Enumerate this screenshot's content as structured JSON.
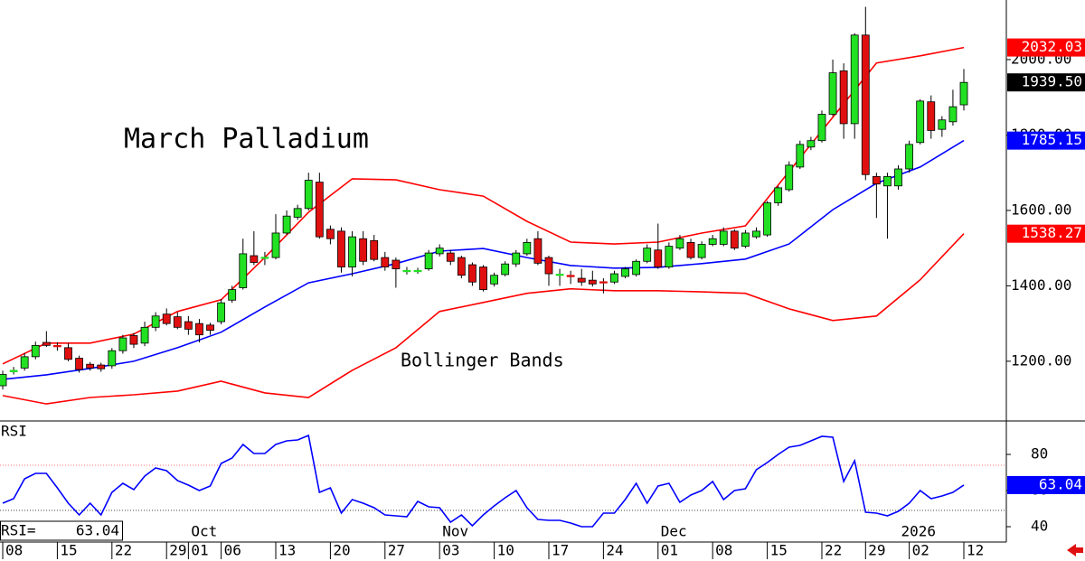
{
  "chart_data": [
    {
      "type": "candlestick",
      "title": "March Palladium",
      "annotation": "Bollinger Bands",
      "open": [
        1135,
        1172,
        1182,
        1212,
        1250,
        1242,
        1236,
        1208,
        1192,
        1190,
        1188,
        1228,
        1268,
        1248,
        1290,
        1325,
        1318,
        1305,
        1300,
        1296,
        1305,
        1362,
        1395,
        1480,
        1473,
        1475,
        1540,
        1582,
        1605,
        1675,
        1550,
        1545,
        1450,
        1525,
        1520,
        1475,
        1468,
        1439,
        1439,
        1445,
        1485,
        1487,
        1475,
        1456,
        1450,
        1405,
        1430,
        1458,
        1485,
        1525,
        1475,
        1429,
        1428,
        1420,
        1415,
        1411,
        1410,
        1425,
        1430,
        1465,
        1495,
        1450,
        1500,
        1515,
        1475,
        1510,
        1510,
        1545,
        1505,
        1530,
        1535,
        1620,
        1655,
        1715,
        1768,
        1785,
        1855,
        1970,
        1830,
        2065,
        1690,
        1665,
        1665,
        1710,
        1780,
        1888,
        1815,
        1835,
        1880
      ],
      "high": [
        1175,
        1185,
        1222,
        1252,
        1280,
        1250,
        1248,
        1215,
        1198,
        1196,
        1235,
        1270,
        1275,
        1305,
        1330,
        1340,
        1330,
        1320,
        1312,
        1302,
        1365,
        1400,
        1525,
        1545,
        1490,
        1590,
        1600,
        1615,
        1700,
        1700,
        1560,
        1555,
        1545,
        1545,
        1535,
        1490,
        1475,
        1450,
        1448,
        1495,
        1510,
        1495,
        1480,
        1462,
        1455,
        1435,
        1465,
        1495,
        1525,
        1545,
        1480,
        1445,
        1440,
        1445,
        1440,
        1420,
        1440,
        1450,
        1470,
        1510,
        1565,
        1515,
        1535,
        1525,
        1518,
        1535,
        1555,
        1550,
        1548,
        1555,
        1625,
        1665,
        1730,
        1785,
        1795,
        1865,
        2000,
        1990,
        2070,
        2140,
        1700,
        1700,
        1720,
        1785,
        1895,
        1905,
        1850,
        1920,
        1975
      ],
      "low": [
        1125,
        1165,
        1175,
        1205,
        1238,
        1228,
        1200,
        1170,
        1175,
        1172,
        1180,
        1220,
        1235,
        1240,
        1280,
        1295,
        1285,
        1270,
        1250,
        1270,
        1298,
        1355,
        1390,
        1455,
        1455,
        1470,
        1535,
        1575,
        1600,
        1525,
        1510,
        1435,
        1425,
        1455,
        1465,
        1440,
        1395,
        1430,
        1432,
        1440,
        1478,
        1455,
        1420,
        1400,
        1385,
        1398,
        1425,
        1450,
        1480,
        1455,
        1400,
        1400,
        1405,
        1400,
        1398,
        1380,
        1405,
        1420,
        1425,
        1460,
        1445,
        1445,
        1495,
        1470,
        1470,
        1505,
        1505,
        1495,
        1500,
        1525,
        1530,
        1612,
        1650,
        1710,
        1760,
        1780,
        1850,
        1790,
        1790,
        1680,
        1580,
        1525,
        1655,
        1700,
        1775,
        1790,
        1795,
        1825,
        1865
      ],
      "close": [
        1165,
        1176,
        1212,
        1242,
        1242,
        1240,
        1205,
        1178,
        1182,
        1180,
        1228,
        1262,
        1245,
        1290,
        1320,
        1300,
        1290,
        1285,
        1270,
        1282,
        1355,
        1390,
        1485,
        1462,
        1476,
        1540,
        1585,
        1605,
        1680,
        1530,
        1525,
        1450,
        1530,
        1465,
        1470,
        1450,
        1445,
        1441,
        1441,
        1487,
        1500,
        1465,
        1428,
        1410,
        1390,
        1428,
        1458,
        1487,
        1515,
        1460,
        1432,
        1431,
        1424,
        1410,
        1405,
        1409,
        1432,
        1445,
        1465,
        1500,
        1450,
        1505,
        1525,
        1475,
        1510,
        1525,
        1545,
        1500,
        1540,
        1545,
        1620,
        1660,
        1720,
        1775,
        1785,
        1855,
        1965,
        1830,
        2065,
        1695,
        1670,
        1690,
        1710,
        1775,
        1890,
        1812,
        1840,
        1875,
        1939.5
      ],
      "close_label": "1939.50",
      "up_color": "#22e022",
      "down_color": "#e01010",
      "bands": {
        "x": [
          0,
          4,
          8,
          12,
          16,
          20,
          24,
          28,
          32,
          36,
          40,
          44,
          48,
          52,
          56,
          60,
          64,
          68,
          72,
          76,
          80,
          84,
          88
        ],
        "series": [
          {
            "color": "#ff0000",
            "values": [
              1193,
              1248,
              1248,
              1272,
              1332,
              1363,
              1475,
              1595,
              1684,
              1681,
              1655,
              1638,
              1571,
              1516,
              1511,
              1516,
              1540,
              1559,
              1703,
              1847,
              1991,
              2010,
              2032.03
            ]
          },
          {
            "color": "#0000ff",
            "values": [
              1152,
              1164,
              1181,
              1200,
              1236,
              1277,
              1344,
              1408,
              1432,
              1459,
              1492,
              1499,
              1475,
              1454,
              1447,
              1449,
              1459,
              1471,
              1511,
              1602,
              1672,
              1715,
              1785.15
            ]
          },
          {
            "color": "#ff0000",
            "values": [
              1109,
              1087,
              1104,
              1111,
              1121,
              1147,
              1116,
              1104,
              1176,
              1236,
              1332,
              1356,
              1380,
              1392,
              1387,
              1387,
              1384,
              1380,
              1339,
              1308,
              1320,
              1416,
              1538.27
            ]
          }
        ]
      },
      "xlim": [
        -0.25,
        91.89
      ],
      "ylim": [
        1044,
        2158
      ],
      "yticks": [
        {
          "value": 1200,
          "label": "1200.00"
        },
        {
          "value": 1400,
          "label": "1400.00"
        },
        {
          "value": 1600,
          "label": "1600.00"
        },
        {
          "value": 1800,
          "label": "1800.00"
        },
        {
          "value": 2000,
          "label": "2000.00"
        }
      ]
    },
    {
      "type": "line",
      "label": "RSI",
      "value_prefix": "RSI=",
      "color": "#0000ff",
      "values": [
        53,
        55.5,
        66.5,
        69.5,
        69.5,
        61.5,
        53,
        46.5,
        53,
        46.5,
        59,
        64,
        60.5,
        68,
        72.5,
        71,
        65.5,
        63,
        60,
        62.5,
        75,
        78,
        85.5,
        80.5,
        80.5,
        85.5,
        87.5,
        88,
        90.5,
        59,
        61.5,
        47.5,
        55,
        53,
        50.5,
        46.5,
        46,
        45.5,
        54,
        51,
        50.5,
        42.5,
        46.5,
        40.5,
        46.5,
        51.5,
        56,
        60,
        50.5,
        44,
        43.5,
        43.5,
        42,
        40,
        40,
        47.5,
        47.5,
        55,
        64,
        53,
        62.5,
        64,
        53.5,
        57.5,
        60,
        65,
        55,
        60,
        61,
        71.5,
        75.5,
        80,
        84,
        85,
        87.5,
        90,
        89.5,
        65,
        76.5,
        48,
        47.5,
        46,
        48.5,
        53,
        60,
        55.5,
        57,
        59,
        63.04
      ],
      "levels": [
        74,
        49
      ],
      "level_colors": [
        "#ff7070",
        "#444444"
      ],
      "ylim": [
        31.5,
        98
      ],
      "yticks": [
        40,
        60,
        80
      ],
      "xlim": [
        -0.25,
        91.89
      ],
      "xticks": [
        {
          "value": 0,
          "label": "08"
        },
        {
          "value": 5,
          "label": "15"
        },
        {
          "value": 10,
          "label": "22"
        },
        {
          "value": 15,
          "label": "29"
        },
        {
          "value": 17,
          "label": "01"
        },
        {
          "value": 20,
          "label": "06"
        },
        {
          "value": 25,
          "label": "13"
        },
        {
          "value": 30,
          "label": "20"
        },
        {
          "value": 35,
          "label": "27"
        },
        {
          "value": 40,
          "label": "03"
        },
        {
          "value": 45,
          "label": "10"
        },
        {
          "value": 50,
          "label": "17"
        },
        {
          "value": 55,
          "label": "24"
        },
        {
          "value": 60,
          "label": "01"
        },
        {
          "value": 65,
          "label": "08"
        },
        {
          "value": 70,
          "label": "15"
        },
        {
          "value": 75,
          "label": "22"
        },
        {
          "value": 79,
          "label": "29"
        },
        {
          "value": 83,
          "label": "02"
        },
        {
          "value": 88,
          "label": "12"
        }
      ],
      "month_ticks": [
        {
          "value": 17,
          "label": "Oct"
        },
        {
          "value": 40,
          "label": "Nov"
        },
        {
          "value": 60,
          "label": "Dec"
        },
        {
          "value": 82,
          "label": "2026"
        }
      ]
    }
  ]
}
